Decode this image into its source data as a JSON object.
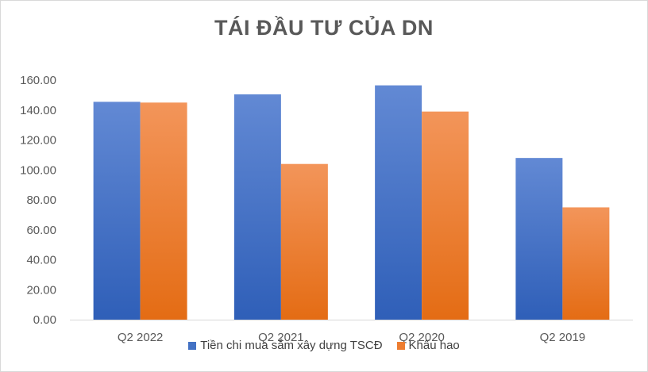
{
  "chart_data": {
    "type": "bar",
    "title": "TÁI ĐẦU TƯ CỦA DN",
    "categories": [
      "Q2 2022",
      "Q2 2021",
      "Q2 2020",
      "Q2 2019"
    ],
    "series": [
      {
        "name": "Tiền chi mua sắm xây dựng TSCĐ",
        "values": [
          145.5,
          150.5,
          156.5,
          108.0
        ],
        "color": "#4472C4"
      },
      {
        "name": "Khấu hao",
        "values": [
          145.0,
          104.0,
          139.0,
          75.0
        ],
        "color": "#ED7D31"
      }
    ],
    "ylim": [
      0,
      160
    ],
    "yticks": [
      "0.00",
      "20.00",
      "40.00",
      "60.00",
      "80.00",
      "100.00",
      "120.00",
      "140.00",
      "160.00"
    ],
    "grid": false,
    "legend_position": "bottom"
  }
}
